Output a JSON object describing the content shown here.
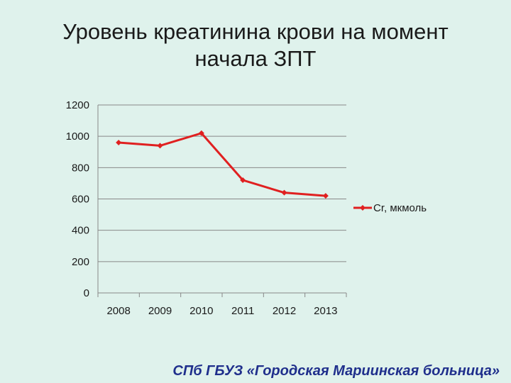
{
  "slide": {
    "title_line1": "Уровень креатинина крови на момент",
    "title_line2": "начала ЗПТ",
    "footer": "СПб ГБУЗ «Городская Мариинская больница»"
  },
  "colors": {
    "background": "#dff2ec",
    "series": "#e02020",
    "footer": "#1f2f8c",
    "grid": "#888888"
  },
  "chart_data": {
    "type": "line",
    "categories": [
      "2008",
      "2009",
      "2010",
      "2011",
      "2012",
      "2013"
    ],
    "series": [
      {
        "name": "Cr, мкмоль",
        "values": [
          960,
          940,
          1020,
          720,
          640,
          620
        ]
      }
    ],
    "ylim": [
      0,
      1200
    ],
    "yticks": [
      0,
      200,
      400,
      600,
      800,
      1000,
      1200
    ],
    "grid": true,
    "legend": "right",
    "marker": "diamond"
  }
}
